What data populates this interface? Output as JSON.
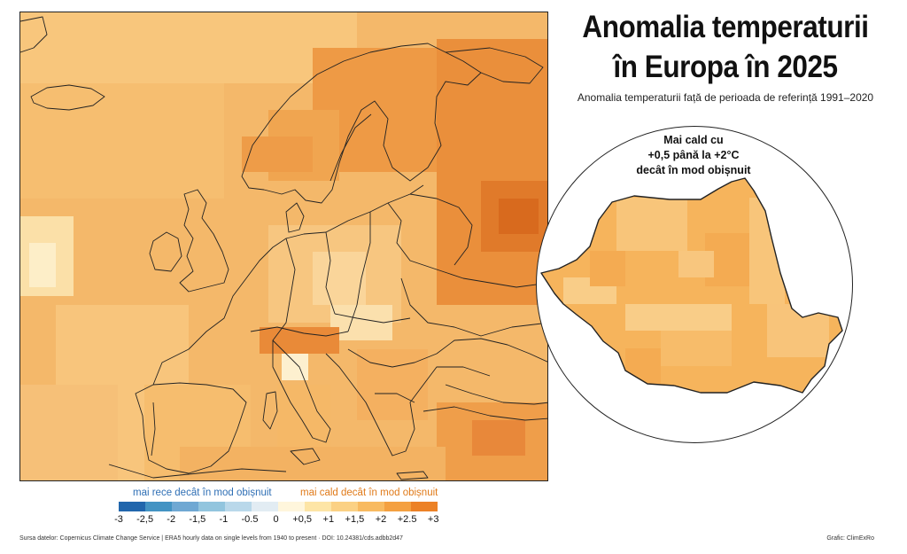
{
  "title_line1": "Anomalia temperaturii",
  "title_line2": "în Europa în 2025",
  "subtitle": "Anomalia temperaturii față de perioada de referință 1991–2020",
  "inset": {
    "line1": "Mai cald cu",
    "line2": "+0,5 până la +2°C",
    "line3": "decât în mod obișnuit"
  },
  "legend": {
    "cold_label": "mai rece decât în mod obișnuit",
    "warm_label": "mai cald decât în mod obișnuit",
    "ticks": [
      "-3",
      "-2,5",
      "-2",
      "-1,5",
      "-1",
      "-0.5",
      "0",
      "+0,5",
      "+1",
      "+1,5",
      "+2",
      "+2.5",
      "+3"
    ],
    "colors": [
      "#2166ac",
      "#4393c3",
      "#6fa8d3",
      "#92c5de",
      "#b9d8ea",
      "#e2ecf3",
      "#fff6dc",
      "#fde5a6",
      "#fbd184",
      "#f8ba60",
      "#f4a040",
      "#ec8126",
      "#de6518"
    ]
  },
  "source": "Sursa datelor: Copernicus Climate Change Service | ERA5 hourly data on single levels from 1940 to present · DOI: 10.24381/cds.adbb2d47",
  "credit": "Grafic: ClimExRo"
}
